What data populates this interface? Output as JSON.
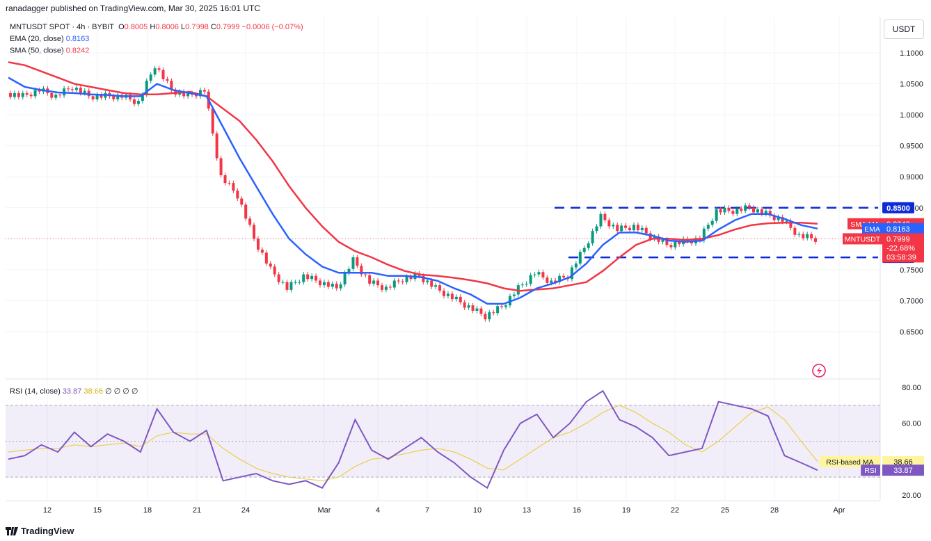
{
  "header": {
    "published_line": "ranadagger published on TradingView.com, Mar 30, 2025 16:01 UTC",
    "symbol_line": "MNTUSDT SPOT · 4h · BYBIT",
    "ohlc": {
      "o_label": "O",
      "o": "0.8005",
      "h_label": "H",
      "h": "0.8006",
      "l_label": "L",
      "l": "0.7998",
      "c_label": "C",
      "c": "0.7999",
      "change": "−0.0006 (−0.07%)"
    },
    "ema_label": "EMA (20, close)",
    "ema_value": "0.8163",
    "sma_label": "SMA (50, close)",
    "sma_value": "0.8242",
    "currency": "USDT"
  },
  "rsi_header": {
    "label": "RSI (14, close)",
    "rsi": "33.87",
    "ma": "38.66",
    "extras": "∅ ∅ ∅ ∅"
  },
  "footer": {
    "brand": "TradingView"
  },
  "colors": {
    "up": "#089981",
    "down": "#f23645",
    "ema": "#2962ff",
    "sma": "#f23645",
    "rsi": "#7e57c2",
    "rsi_ma": "#e8d04a",
    "level": "#0d2bd6"
  },
  "chart_data": [
    {
      "type": "line",
      "title": "MNTUSDT SPOT · 4h · BYBIT",
      "x": [
        "Feb 9",
        "Feb 10",
        "Feb 11",
        "Feb 12",
        "Feb 13",
        "Feb 14",
        "Feb 15",
        "Feb 16",
        "Feb 17",
        "Feb 18",
        "Feb 19",
        "Feb 20",
        "Feb 21",
        "Feb 22",
        "Feb 23",
        "Feb 24",
        "Feb 25",
        "Feb 26",
        "Feb 27",
        "Feb 28",
        "Mar 1",
        "Mar 2",
        "Mar 3",
        "Mar 4",
        "Mar 5",
        "Mar 6",
        "Mar 7",
        "Mar 8",
        "Mar 9",
        "Mar 10",
        "Mar 11",
        "Mar 12",
        "Mar 13",
        "Mar 14",
        "Mar 15",
        "Mar 16",
        "Mar 17",
        "Mar 18",
        "Mar 19",
        "Mar 20",
        "Mar 21",
        "Mar 22",
        "Mar 23",
        "Mar 24",
        "Mar 25",
        "Mar 26",
        "Mar 27",
        "Mar 28",
        "Mar 29",
        "Mar 30"
      ],
      "x_tick_labels": [
        "12",
        "15",
        "18",
        "21",
        "24",
        "Mar",
        "4",
        "7",
        "10",
        "13",
        "16",
        "19",
        "22",
        "25",
        "28",
        "Apr"
      ],
      "series": [
        {
          "name": "MNTUSDT",
          "values": [
            1.035,
            1.03,
            1.04,
            1.03,
            1.045,
            1.03,
            1.03,
            1.03,
            1.02,
            1.08,
            1.04,
            1.03,
            1.04,
            0.9,
            0.87,
            0.8,
            0.75,
            0.72,
            0.74,
            0.73,
            0.72,
            0.765,
            0.73,
            0.72,
            0.735,
            0.74,
            0.72,
            0.705,
            0.69,
            0.675,
            0.69,
            0.72,
            0.745,
            0.73,
            0.74,
            0.785,
            0.835,
            0.815,
            0.82,
            0.805,
            0.79,
            0.795,
            0.8,
            0.845,
            0.845,
            0.85,
            0.84,
            0.83,
            0.805,
            0.7999
          ]
        },
        {
          "name": "EMA",
          "values": [
            1.06,
            1.045,
            1.04,
            1.036,
            1.035,
            1.033,
            1.032,
            1.03,
            1.03,
            1.05,
            1.04,
            1.035,
            1.03,
            0.98,
            0.93,
            0.885,
            0.84,
            0.8,
            0.775,
            0.755,
            0.745,
            0.745,
            0.745,
            0.74,
            0.74,
            0.738,
            0.732,
            0.72,
            0.71,
            0.695,
            0.695,
            0.705,
            0.72,
            0.728,
            0.738,
            0.76,
            0.79,
            0.81,
            0.81,
            0.805,
            0.797,
            0.795,
            0.797,
            0.815,
            0.83,
            0.84,
            0.84,
            0.832,
            0.822,
            0.8163
          ]
        },
        {
          "name": "SMA",
          "values": [
            1.085,
            1.08,
            1.07,
            1.06,
            1.05,
            1.045,
            1.04,
            1.035,
            1.033,
            1.033,
            1.035,
            1.037,
            1.03,
            1.01,
            0.99,
            0.96,
            0.925,
            0.885,
            0.85,
            0.82,
            0.795,
            0.78,
            0.77,
            0.758,
            0.748,
            0.742,
            0.74,
            0.737,
            0.733,
            0.728,
            0.72,
            0.716,
            0.718,
            0.72,
            0.725,
            0.73,
            0.748,
            0.77,
            0.79,
            0.8,
            0.8,
            0.798,
            0.8,
            0.806,
            0.815,
            0.822,
            0.825,
            0.826,
            0.826,
            0.8242
          ]
        }
      ],
      "ylim": [
        0.64,
        1.13
      ],
      "y_ticks": [
        "1.1000",
        "1.0500",
        "1.0000",
        "0.9500",
        "0.9000",
        "0.8500",
        "0.8000",
        "0.7500",
        "0.7000",
        "0.6500"
      ],
      "levels": [
        {
          "value": 0.85,
          "label": "0.8500"
        },
        {
          "value": 0.77,
          "label": "0.7700"
        }
      ],
      "price_tags": [
        {
          "name": "SMA:MA",
          "value": "0.8242"
        },
        {
          "name": "EMA",
          "value": "0.8163"
        },
        {
          "name": "MNTUSDT",
          "value": "0.7999",
          "change": "-22.68%",
          "countdown": "03:58:39"
        }
      ],
      "grid": true
    },
    {
      "type": "line",
      "title": "RSI (14, close)",
      "x": [
        "Feb 9",
        "Feb 10",
        "Feb 11",
        "Feb 12",
        "Feb 13",
        "Feb 14",
        "Feb 15",
        "Feb 16",
        "Feb 17",
        "Feb 18",
        "Feb 19",
        "Feb 20",
        "Feb 21",
        "Feb 22",
        "Feb 23",
        "Feb 24",
        "Feb 25",
        "Feb 26",
        "Feb 27",
        "Feb 28",
        "Mar 1",
        "Mar 2",
        "Mar 3",
        "Mar 4",
        "Mar 5",
        "Mar 6",
        "Mar 7",
        "Mar 8",
        "Mar 9",
        "Mar 10",
        "Mar 11",
        "Mar 12",
        "Mar 13",
        "Mar 14",
        "Mar 15",
        "Mar 16",
        "Mar 17",
        "Mar 18",
        "Mar 19",
        "Mar 20",
        "Mar 21",
        "Mar 22",
        "Mar 23",
        "Mar 24",
        "Mar 25",
        "Mar 26",
        "Mar 27",
        "Mar 28",
        "Mar 29",
        "Mar 30"
      ],
      "series": [
        {
          "name": "RSI",
          "values": [
            40,
            42,
            48,
            44,
            55,
            47,
            54,
            50,
            44,
            68,
            55,
            50,
            56,
            28,
            30,
            32,
            28,
            26,
            28,
            24,
            38,
            62,
            45,
            40,
            46,
            52,
            44,
            38,
            30,
            24,
            45,
            60,
            65,
            52,
            60,
            72,
            78,
            62,
            58,
            52,
            42,
            44,
            46,
            72,
            70,
            68,
            64,
            42,
            38,
            33.87
          ]
        },
        {
          "name": "RSI-based MA",
          "values": [
            44,
            45,
            46,
            46,
            48,
            47,
            48,
            49,
            47,
            53,
            55,
            54,
            54,
            46,
            40,
            35,
            32,
            30,
            29,
            28,
            30,
            36,
            40,
            41,
            43,
            45,
            46,
            44,
            40,
            35,
            34,
            40,
            46,
            52,
            55,
            60,
            66,
            70,
            66,
            60,
            55,
            48,
            44,
            50,
            58,
            66,
            69,
            62,
            50,
            38.66
          ]
        }
      ],
      "ylim": [
        17,
        83
      ],
      "y_ticks": [
        "80.00",
        "60.00",
        "40.00",
        "20.00"
      ],
      "bands": [
        70,
        50,
        30
      ],
      "price_tags": [
        {
          "name": "RSI-based MA",
          "value": "38.66"
        },
        {
          "name": "RSI",
          "value": "33.87"
        }
      ]
    }
  ]
}
